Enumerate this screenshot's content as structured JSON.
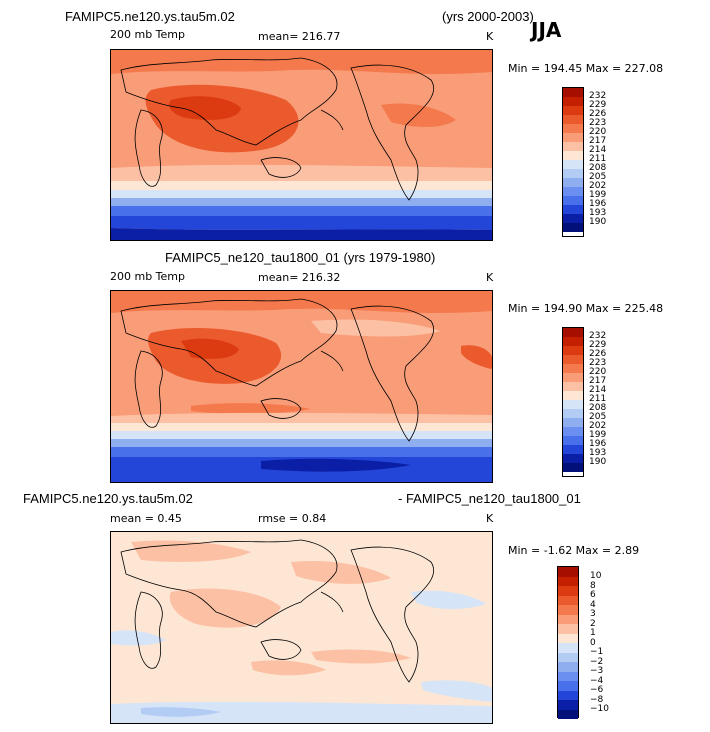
{
  "season": "JJA",
  "panels": [
    {
      "title": "FAMIPC5.ne120.ys.tau5m.02",
      "years": "(yrs 2000-2003)",
      "variable": "200 mb Temp",
      "mean": "mean= 216.77",
      "units": "K",
      "minmax": "Min = 194.45  Max = 227.08",
      "colorbar_labels": [
        "232",
        "229",
        "226",
        "223",
        "220",
        "217",
        "214",
        "211",
        "208",
        "205",
        "202",
        "199",
        "196",
        "193",
        "190"
      ]
    },
    {
      "title": "FAMIPC5_ne120_tau1800_01 (yrs 1979-1980)",
      "variable": "200 mb Temp",
      "mean": "mean= 216.32",
      "units": "K",
      "minmax": "Min = 194.90  Max = 225.48",
      "colorbar_labels": [
        "232",
        "229",
        "226",
        "223",
        "220",
        "217",
        "214",
        "211",
        "208",
        "205",
        "202",
        "199",
        "196",
        "193",
        "190"
      ]
    },
    {
      "title_left": "FAMIPC5.ne120.ys.tau5m.02",
      "title_right": "- FAMIPC5_ne120_tau1800_01",
      "mean": "mean =    0.45",
      "rmse": "rmse =    0.84",
      "units": "K",
      "minmax": "Min =  -1.62  Max =   2.89",
      "colorbar_labels": [
        "10",
        "8",
        "6",
        "4",
        "3",
        "2",
        "1",
        "0",
        "−1",
        "−2",
        "−3",
        "−4",
        "−6",
        "−8",
        "−10"
      ]
    }
  ],
  "colors": {
    "abs_scale": [
      "#a50f00",
      "#c42000",
      "#dc3a10",
      "#ea5a2c",
      "#f4794c",
      "#f99c78",
      "#fcc0a4",
      "#fde6d4",
      "#d6e4f8",
      "#b2ccf3",
      "#8eaef0",
      "#6b8ff0",
      "#4870ea",
      "#2346d8",
      "#0b1fa6",
      "#02117a"
    ],
    "diff_scale": [
      "#a50f00",
      "#c42000",
      "#dc3a10",
      "#ea5a2c",
      "#f4794c",
      "#f99c78",
      "#fcc0a4",
      "#fde6d4",
      "#d6e4f8",
      "#b2ccf3",
      "#8eaef0",
      "#6b8ff0",
      "#4870ea",
      "#2346d8",
      "#0b1fa6",
      "#02117a"
    ]
  }
}
